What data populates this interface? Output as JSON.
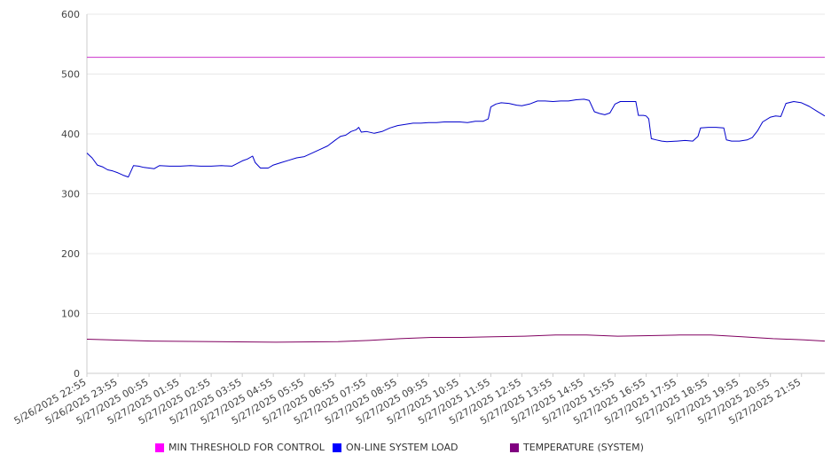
{
  "chart_data": {
    "type": "line",
    "title": "",
    "xlabel": "",
    "ylabel": "",
    "ylim": [
      0,
      600
    ],
    "yticks": [
      0,
      100,
      200,
      300,
      400,
      500,
      600
    ],
    "grid": true,
    "legend_position": "bottom",
    "x_start": "5/26/2025 22:55",
    "x_end": "5/27/2025 22:40",
    "x_tick_labels": [
      "5/26/2025 22:55",
      "5/26/2025 23:55",
      "5/27/2025 00:55",
      "5/27/2025 01:55",
      "5/27/2025 02:55",
      "5/27/2025 03:55",
      "5/27/2025 04:55",
      "5/27/2025 05:55",
      "5/27/2025 06:55",
      "5/27/2025 07:55",
      "5/27/2025 08:55",
      "5/27/2025 09:55",
      "5/27/2025 10:55",
      "5/27/2025 11:55",
      "5/27/2025 12:55",
      "5/27/2025 13:55",
      "5/27/2025 14:55",
      "5/27/2025 15:55",
      "5/27/2025 16:55",
      "5/27/2025 17:55",
      "5/27/2025 18:55",
      "5/27/2025 19:55",
      "5/27/2025 20:55",
      "5/27/2025 21:55"
    ],
    "series": [
      {
        "name": "MIN THRESHOLD FOR CONTROL",
        "color": "#cc33cc",
        "legend_color": "#ff00ff",
        "points": [
          [
            "5/26/2025 22:55",
            528
          ],
          [
            "5/27/2025 22:40",
            528
          ]
        ]
      },
      {
        "name": "ON-LINE SYSTEM LOAD",
        "color": "#0000cc",
        "legend_color": "#0000ff",
        "points": [
          [
            "5/26/2025 22:55",
            368
          ],
          [
            "5/26/2025 23:05",
            360
          ],
          [
            "5/26/2025 23:15",
            348
          ],
          [
            "5/26/2025 23:25",
            345
          ],
          [
            "5/26/2025 23:35",
            340
          ],
          [
            "5/26/2025 23:45",
            338
          ],
          [
            "5/26/2025 23:55",
            335
          ],
          [
            "5/27/2025 00:05",
            331
          ],
          [
            "5/27/2025 00:15",
            328
          ],
          [
            "5/27/2025 00:25",
            347
          ],
          [
            "5/27/2025 00:35",
            346
          ],
          [
            "5/27/2025 00:45",
            344
          ],
          [
            "5/27/2025 00:55",
            343
          ],
          [
            "5/27/2025 01:05",
            342
          ],
          [
            "5/27/2025 01:15",
            347
          ],
          [
            "5/27/2025 01:35",
            346
          ],
          [
            "5/27/2025 01:55",
            346
          ],
          [
            "5/27/2025 02:15",
            347
          ],
          [
            "5/27/2025 02:35",
            346
          ],
          [
            "5/27/2025 02:55",
            346
          ],
          [
            "5/27/2025 03:15",
            347
          ],
          [
            "5/27/2025 03:35",
            346
          ],
          [
            "5/27/2025 03:55",
            355
          ],
          [
            "5/27/2025 04:05",
            358
          ],
          [
            "5/27/2025 04:15",
            363
          ],
          [
            "5/27/2025 04:20",
            352
          ],
          [
            "5/27/2025 04:30",
            343
          ],
          [
            "5/27/2025 04:45",
            343
          ],
          [
            "5/27/2025 04:55",
            348
          ],
          [
            "5/27/2025 05:10",
            352
          ],
          [
            "5/27/2025 05:25",
            356
          ],
          [
            "5/27/2025 05:40",
            360
          ],
          [
            "5/27/2025 05:55",
            362
          ],
          [
            "5/27/2025 06:10",
            368
          ],
          [
            "5/27/2025 06:25",
            374
          ],
          [
            "5/27/2025 06:40",
            380
          ],
          [
            "5/27/2025 06:55",
            390
          ],
          [
            "5/27/2025 07:05",
            396
          ],
          [
            "5/27/2025 07:15",
            398
          ],
          [
            "5/27/2025 07:25",
            404
          ],
          [
            "5/27/2025 07:35",
            407
          ],
          [
            "5/27/2025 07:40",
            411
          ],
          [
            "5/27/2025 07:45",
            403
          ],
          [
            "5/27/2025 07:55",
            404
          ],
          [
            "5/27/2025 08:10",
            401
          ],
          [
            "5/27/2025 08:25",
            404
          ],
          [
            "5/27/2025 08:40",
            410
          ],
          [
            "5/27/2025 08:55",
            414
          ],
          [
            "5/27/2025 09:10",
            416
          ],
          [
            "5/27/2025 09:25",
            418
          ],
          [
            "5/27/2025 09:40",
            418
          ],
          [
            "5/27/2025 09:55",
            419
          ],
          [
            "5/27/2025 10:10",
            419
          ],
          [
            "5/27/2025 10:25",
            420
          ],
          [
            "5/27/2025 10:40",
            420
          ],
          [
            "5/27/2025 10:55",
            420
          ],
          [
            "5/27/2025 11:10",
            419
          ],
          [
            "5/27/2025 11:25",
            421
          ],
          [
            "5/27/2025 11:40",
            421
          ],
          [
            "5/27/2025 11:50",
            425
          ],
          [
            "5/27/2025 11:55",
            445
          ],
          [
            "5/27/2025 12:05",
            450
          ],
          [
            "5/27/2025 12:15",
            452
          ],
          [
            "5/27/2025 12:30",
            451
          ],
          [
            "5/27/2025 12:45",
            448
          ],
          [
            "5/27/2025 12:55",
            447
          ],
          [
            "5/27/2025 13:10",
            450
          ],
          [
            "5/27/2025 13:25",
            455
          ],
          [
            "5/27/2025 13:40",
            455
          ],
          [
            "5/27/2025 13:55",
            454
          ],
          [
            "5/27/2025 14:10",
            455
          ],
          [
            "5/27/2025 14:25",
            455
          ],
          [
            "5/27/2025 14:40",
            457
          ],
          [
            "5/27/2025 14:55",
            458
          ],
          [
            "5/27/2025 15:05",
            456
          ],
          [
            "5/27/2025 15:15",
            437
          ],
          [
            "5/27/2025 15:25",
            434
          ],
          [
            "5/27/2025 15:35",
            432
          ],
          [
            "5/27/2025 15:45",
            435
          ],
          [
            "5/27/2025 15:55",
            450
          ],
          [
            "5/27/2025 16:05",
            454
          ],
          [
            "5/27/2025 16:20",
            454
          ],
          [
            "5/27/2025 16:35",
            454
          ],
          [
            "5/27/2025 16:40",
            431
          ],
          [
            "5/27/2025 16:50",
            431
          ],
          [
            "5/27/2025 16:55",
            430
          ],
          [
            "5/27/2025 17:00",
            425
          ],
          [
            "5/27/2025 17:05",
            392
          ],
          [
            "5/27/2025 17:15",
            390
          ],
          [
            "5/27/2025 17:25",
            388
          ],
          [
            "5/27/2025 17:35",
            387
          ],
          [
            "5/27/2025 17:55",
            388
          ],
          [
            "5/27/2025 18:10",
            389
          ],
          [
            "5/27/2025 18:25",
            388
          ],
          [
            "5/27/2025 18:35",
            396
          ],
          [
            "5/27/2025 18:40",
            410
          ],
          [
            "5/27/2025 18:55",
            411
          ],
          [
            "5/27/2025 19:10",
            411
          ],
          [
            "5/27/2025 19:25",
            410
          ],
          [
            "5/27/2025 19:30",
            390
          ],
          [
            "5/27/2025 19:40",
            388
          ],
          [
            "5/27/2025 19:55",
            388
          ],
          [
            "5/27/2025 20:10",
            390
          ],
          [
            "5/27/2025 20:20",
            394
          ],
          [
            "5/27/2025 20:30",
            405
          ],
          [
            "5/27/2025 20:40",
            420
          ],
          [
            "5/27/2025 20:55",
            428
          ],
          [
            "5/27/2025 21:05",
            430
          ],
          [
            "5/27/2025 21:15",
            429
          ],
          [
            "5/27/2025 21:20",
            440
          ],
          [
            "5/27/2025 21:25",
            451
          ],
          [
            "5/27/2025 21:40",
            454
          ],
          [
            "5/27/2025 21:55",
            452
          ],
          [
            "5/27/2025 22:10",
            446
          ],
          [
            "5/27/2025 22:25",
            438
          ],
          [
            "5/27/2025 22:40",
            430
          ]
        ]
      },
      {
        "name": "TEMPERATURE (SYSTEM)",
        "color": "#800060",
        "legend_color": "#800080",
        "points": [
          [
            "5/26/2025 22:55",
            57
          ],
          [
            "5/27/2025 01:00",
            54
          ],
          [
            "5/27/2025 03:00",
            53
          ],
          [
            "5/27/2025 05:00",
            52
          ],
          [
            "5/27/2025 07:00",
            53
          ],
          [
            "5/27/2025 08:00",
            55
          ],
          [
            "5/27/2025 09:00",
            58
          ],
          [
            "5/27/2025 10:00",
            60
          ],
          [
            "5/27/2025 11:00",
            60
          ],
          [
            "5/27/2025 12:00",
            61
          ],
          [
            "5/27/2025 13:00",
            62
          ],
          [
            "5/27/2025 14:00",
            64
          ],
          [
            "5/27/2025 15:00",
            64
          ],
          [
            "5/27/2025 16:00",
            62
          ],
          [
            "5/27/2025 17:00",
            63
          ],
          [
            "5/27/2025 18:00",
            64
          ],
          [
            "5/27/2025 19:00",
            64
          ],
          [
            "5/27/2025 20:00",
            61
          ],
          [
            "5/27/2025 21:00",
            58
          ],
          [
            "5/27/2025 22:00",
            56
          ],
          [
            "5/27/2025 22:40",
            54
          ]
        ]
      }
    ]
  },
  "legend": {
    "items": [
      {
        "label": "MIN THRESHOLD FOR CONTROL",
        "color": "#ff00ff"
      },
      {
        "label": "ON-LINE SYSTEM LOAD",
        "color": "#0000ff"
      },
      {
        "label": "TEMPERATURE (SYSTEM)",
        "color": "#800080"
      }
    ]
  }
}
